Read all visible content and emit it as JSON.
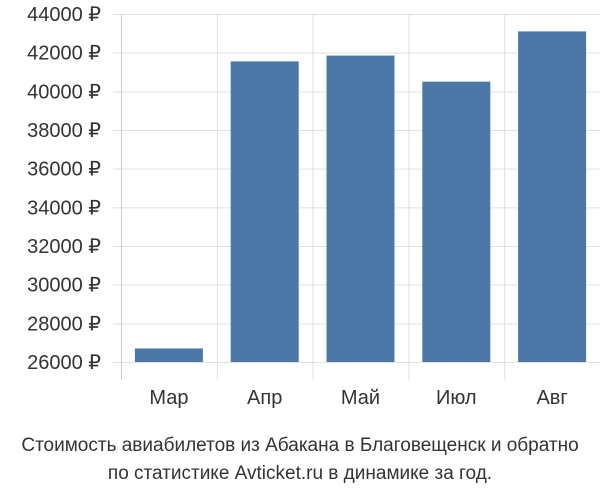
{
  "chart_data": {
    "type": "bar",
    "categories": [
      "Мар",
      "Апр",
      "Май",
      "Июл",
      "Авг"
    ],
    "values": [
      26700,
      41550,
      41850,
      40500,
      43100
    ],
    "ylim": [
      26000,
      44000
    ],
    "yticks": [
      26000,
      28000,
      30000,
      32000,
      34000,
      36000,
      38000,
      40000,
      42000,
      44000
    ],
    "ytick_labels": [
      "26000 ₽",
      "28000 ₽",
      "30000 ₽",
      "32000 ₽",
      "34000 ₽",
      "36000 ₽",
      "38000 ₽",
      "40000 ₽",
      "42000 ₽",
      "44000 ₽"
    ],
    "bar_color": "#4c78a8",
    "grid": true
  },
  "caption": {
    "line1": "Стоимость авиабилетов из Абакана в Благовещенск и обратно",
    "line2": "по статистике Avticket.ru в динамике за год."
  }
}
